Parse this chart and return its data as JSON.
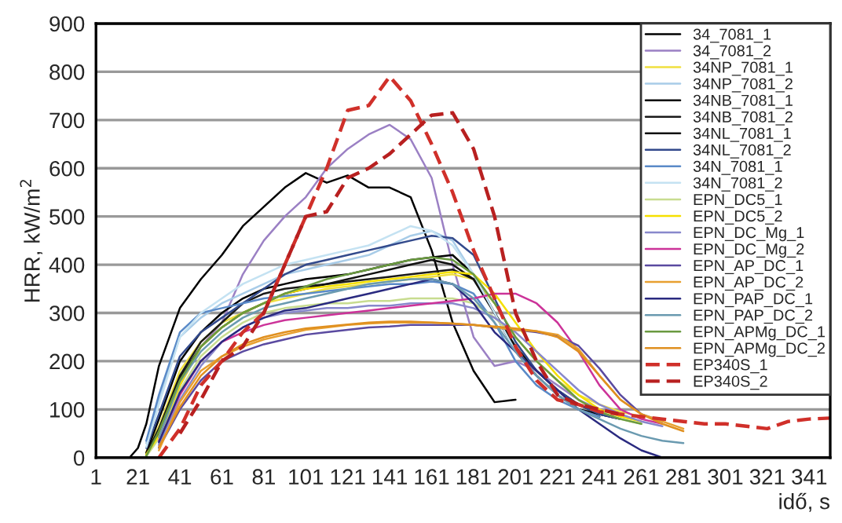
{
  "chart_data": {
    "type": "line",
    "xlabel": "idő, s",
    "ylabel": "HRR, kW/m$^{2}$",
    "x": [
      1,
      17,
      21,
      25,
      31,
      41,
      51,
      61,
      71,
      81,
      91,
      101,
      111,
      121,
      131,
      141,
      151,
      161,
      171,
      181,
      191,
      201,
      211,
      221,
      231,
      241,
      251,
      261,
      271,
      281,
      291,
      301,
      311,
      321,
      331,
      341,
      351
    ],
    "xlim": [
      1,
      351
    ],
    "xticks": [
      1,
      21,
      41,
      61,
      81,
      101,
      121,
      141,
      161,
      181,
      201,
      221,
      241,
      261,
      281,
      301,
      321,
      341
    ],
    "ylim": [
      0,
      900
    ],
    "yticks": [
      0,
      100,
      200,
      300,
      400,
      500,
      600,
      700,
      800,
      900
    ],
    "grid": "y",
    "legend": "top right",
    "line_style": "solid",
    "series": [
      {
        "name": "34_7081_1",
        "color": "#000000",
        "values": [
          0,
          0,
          20,
          70,
          190,
          310,
          370,
          420,
          480,
          520,
          560,
          590,
          570,
          585,
          560,
          560,
          540,
          430,
          280,
          180,
          115,
          120,
          null,
          null,
          null,
          null,
          null,
          null,
          null,
          null,
          null,
          null,
          null,
          null,
          null,
          null,
          null
        ]
      },
      {
        "name": "34_7081_2",
        "color": "#9b80c4",
        "values": [
          null,
          null,
          null,
          null,
          25,
          150,
          230,
          280,
          380,
          450,
          500,
          540,
          600,
          640,
          670,
          690,
          660,
          580,
          400,
          250,
          190,
          200,
          180,
          150,
          120,
          100,
          90,
          null,
          null,
          null,
          null,
          null,
          null,
          null,
          null,
          null,
          null
        ]
      },
      {
        "name": "34NP_7081_1",
        "color": "#f0e040",
        "values": [
          null,
          null,
          null,
          12,
          65,
          180,
          240,
          280,
          300,
          320,
          330,
          340,
          350,
          355,
          360,
          365,
          370,
          375,
          380,
          370,
          320,
          250,
          200,
          160,
          130,
          110,
          95,
          85,
          null,
          null,
          null,
          null,
          null,
          null,
          null,
          null,
          null
        ]
      },
      {
        "name": "34NP_7081_2",
        "color": "#a8cce8",
        "values": [
          null,
          null,
          null,
          30,
          120,
          250,
          290,
          320,
          340,
          360,
          380,
          390,
          400,
          410,
          420,
          440,
          460,
          470,
          450,
          380,
          300,
          230,
          180,
          140,
          110,
          90,
          80,
          null,
          null,
          null,
          null,
          null,
          null,
          null,
          null,
          null,
          null
        ]
      },
      {
        "name": "34NB_7081_1",
        "color": "#000000",
        "values": [
          null,
          null,
          null,
          10,
          80,
          200,
          260,
          300,
          330,
          350,
          360,
          370,
          375,
          380,
          390,
          400,
          410,
          415,
          420,
          380,
          300,
          220,
          170,
          130,
          100,
          90,
          80,
          null,
          null,
          null,
          null,
          null,
          null,
          null,
          null,
          null,
          null
        ]
      },
      {
        "name": "34NB_7081_2",
        "color": "#1a1a1a",
        "values": [
          null,
          null,
          null,
          8,
          60,
          170,
          240,
          280,
          320,
          340,
          350,
          355,
          360,
          365,
          370,
          375,
          380,
          385,
          390,
          370,
          300,
          220,
          170,
          130,
          100,
          85,
          null,
          null,
          null,
          null,
          null,
          null,
          null,
          null,
          null,
          null,
          null
        ]
      },
      {
        "name": "34NL_7081_1",
        "color": "#111111",
        "values": [
          null,
          null,
          null,
          5,
          50,
          165,
          230,
          270,
          300,
          320,
          340,
          350,
          360,
          370,
          380,
          390,
          400,
          410,
          400,
          370,
          300,
          230,
          180,
          140,
          110,
          90,
          null,
          null,
          null,
          null,
          null,
          null,
          null,
          null,
          null,
          null,
          null
        ]
      },
      {
        "name": "34NL_7081_2",
        "color": "#334a8c",
        "values": [
          null,
          null,
          null,
          20,
          90,
          210,
          260,
          290,
          320,
          350,
          380,
          400,
          410,
          420,
          430,
          440,
          450,
          460,
          455,
          420,
          330,
          240,
          180,
          140,
          110,
          90,
          80,
          null,
          null,
          null,
          null,
          null,
          null,
          null,
          null,
          null,
          null
        ]
      },
      {
        "name": "34N_7081_1",
        "color": "#5a8ac8",
        "values": [
          null,
          null,
          null,
          35,
          130,
          260,
          300,
          310,
          320,
          330,
          335,
          340,
          345,
          350,
          355,
          360,
          360,
          365,
          360,
          340,
          280,
          200,
          150,
          120,
          100,
          85,
          null,
          null,
          null,
          null,
          null,
          null,
          null,
          null,
          null,
          null,
          null
        ]
      },
      {
        "name": "34N_7081_2",
        "color": "#c4e2f2",
        "values": [
          null,
          null,
          null,
          22,
          110,
          250,
          300,
          330,
          360,
          380,
          400,
          410,
          420,
          430,
          440,
          460,
          480,
          470,
          440,
          380,
          300,
          220,
          170,
          130,
          100,
          80,
          null,
          null,
          null,
          null,
          null,
          null,
          null,
          null,
          null,
          null,
          null
        ]
      },
      {
        "name": "EPN_DC5_1",
        "color": "#c8dc90",
        "values": [
          null,
          null,
          null,
          3,
          40,
          140,
          210,
          250,
          280,
          300,
          310,
          315,
          320,
          320,
          325,
          325,
          330,
          330,
          330,
          320,
          290,
          250,
          200,
          160,
          120,
          95,
          80,
          70,
          null,
          null,
          null,
          null,
          null,
          null,
          null,
          null,
          null
        ]
      },
      {
        "name": "EPN_DC5_2",
        "color": "#f5e000",
        "values": [
          null,
          null,
          null,
          7,
          45,
          150,
          230,
          270,
          300,
          320,
          340,
          350,
          355,
          360,
          365,
          370,
          375,
          380,
          385,
          380,
          340,
          280,
          220,
          170,
          130,
          100,
          85,
          75,
          null,
          null,
          null,
          null,
          null,
          null,
          null,
          null,
          null
        ]
      },
      {
        "name": "EPN_DC_Mg_1",
        "color": "#8888cc",
        "values": [
          null,
          null,
          null,
          null,
          28,
          120,
          190,
          240,
          270,
          290,
          300,
          305,
          310,
          310,
          315,
          315,
          320,
          320,
          320,
          310,
          290,
          260,
          220,
          180,
          140,
          110,
          90,
          75,
          65,
          null,
          null,
          null,
          null,
          null,
          null,
          null,
          null
        ]
      },
      {
        "name": "EPN_DC_Mg_2",
        "color": "#cc3399",
        "values": [
          null,
          null,
          null,
          null,
          35,
          130,
          200,
          240,
          260,
          275,
          285,
          290,
          295,
          300,
          305,
          310,
          315,
          320,
          325,
          330,
          340,
          340,
          320,
          280,
          220,
          150,
          100,
          80,
          70,
          null,
          null,
          null,
          null,
          null,
          null,
          null,
          null
        ]
      },
      {
        "name": "EPN_AP_DC_1",
        "color": "#5a4aa0",
        "values": [
          null,
          null,
          null,
          null,
          20,
          100,
          160,
          200,
          220,
          235,
          245,
          255,
          260,
          265,
          270,
          272,
          275,
          275,
          275,
          275,
          270,
          265,
          260,
          252,
          232,
          185,
          130,
          90,
          75,
          null,
          null,
          null,
          null,
          null,
          null,
          null,
          null
        ]
      },
      {
        "name": "EPN_AP_DC_2",
        "color": "#e8a030",
        "values": [
          null,
          null,
          null,
          null,
          15,
          115,
          180,
          210,
          230,
          245,
          255,
          265,
          270,
          275,
          278,
          280,
          280,
          280,
          278,
          275,
          270,
          265,
          262,
          255,
          225,
          170,
          120,
          90,
          75,
          60,
          null,
          null,
          null,
          null,
          null,
          null,
          null
        ]
      },
      {
        "name": "EPN_PAP_DC_1",
        "color": "#2a2a80",
        "values": [
          null,
          null,
          null,
          null,
          32,
          135,
          200,
          240,
          270,
          290,
          305,
          310,
          320,
          330,
          340,
          350,
          360,
          370,
          360,
          320,
          260,
          220,
          180,
          140,
          100,
          70,
          40,
          15,
          0,
          null,
          null,
          null,
          null,
          null,
          null,
          null,
          null
        ]
      },
      {
        "name": "EPN_PAP_DC_2",
        "color": "#6a9ab0",
        "values": [
          null,
          null,
          null,
          null,
          42,
          158,
          220,
          260,
          290,
          310,
          320,
          330,
          340,
          350,
          360,
          365,
          370,
          370,
          360,
          330,
          280,
          220,
          170,
          130,
          100,
          80,
          60,
          45,
          35,
          30,
          null,
          null,
          null,
          null,
          null,
          null,
          null
        ]
      },
      {
        "name": "EPN_APMg_DC_1",
        "color": "#6a9a40",
        "values": [
          null,
          null,
          null,
          3,
          55,
          160,
          230,
          270,
          300,
          320,
          340,
          355,
          370,
          380,
          390,
          400,
          410,
          415,
          410,
          380,
          320,
          250,
          200,
          160,
          120,
          95,
          80,
          70,
          null,
          null,
          null,
          null,
          null,
          null,
          null,
          null,
          null
        ]
      },
      {
        "name": "EPN_APMg_DC_2",
        "color": "#e09020",
        "values": [
          null,
          null,
          null,
          null,
          22,
          105,
          170,
          210,
          235,
          250,
          260,
          268,
          272,
          276,
          280,
          282,
          282,
          280,
          278,
          275,
          272,
          268,
          262,
          250,
          220,
          170,
          120,
          90,
          70,
          55,
          null,
          null,
          null,
          null,
          null,
          null,
          null
        ]
      },
      {
        "name": "EP340S_1",
        "color": "#d0302a",
        "line_style": "dashed",
        "values": [
          null,
          null,
          null,
          null,
          0,
          60,
          150,
          200,
          260,
          300,
          400,
          500,
          600,
          720,
          730,
          790,
          740,
          650,
          550,
          430,
          330,
          230,
          160,
          120,
          110,
          95,
          90,
          85,
          80,
          75,
          70,
          70,
          65,
          60,
          75,
          80,
          82
        ]
      },
      {
        "name": "EP340S_2",
        "color": "#b82020",
        "line_style": "dashed",
        "values": [
          null,
          null,
          null,
          null,
          null,
          50,
          120,
          200,
          230,
          300,
          400,
          500,
          510,
          580,
          600,
          630,
          670,
          710,
          715,
          640,
          500,
          300,
          200,
          130,
          110,
          100,
          90,
          null,
          null,
          null,
          null,
          null,
          null,
          null,
          null,
          null,
          null
        ]
      }
    ]
  }
}
